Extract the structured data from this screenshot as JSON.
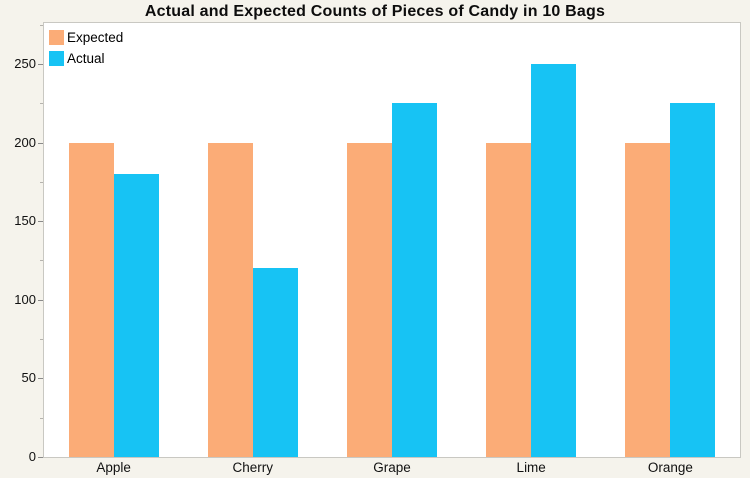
{
  "title": "Actual and Expected Counts of Pieces of Candy in 10 Bags",
  "chart_data": {
    "type": "bar",
    "title": "Actual and Expected Counts of Pieces of Candy in 10 Bags",
    "categories": [
      "Apple",
      "Cherry",
      "Grape",
      "Lime",
      "Orange"
    ],
    "series": [
      {
        "name": "Expected",
        "color": "#FBAC77",
        "values": [
          200,
          200,
          200,
          200,
          200
        ]
      },
      {
        "name": "Actual",
        "color": "#17C3F4",
        "values": [
          180,
          120,
          225,
          250,
          225
        ]
      }
    ],
    "xlabel": "",
    "ylabel": "",
    "ylim": [
      0,
      276
    ],
    "yticks_major": [
      0,
      50,
      100,
      150,
      200,
      250
    ],
    "yticks_minor": [
      25,
      75,
      125,
      175,
      225,
      275
    ],
    "grid": false,
    "legend_position": "top-left",
    "colors": {
      "background": "#F5F3EC",
      "plot_background": "#FFFFFF",
      "plot_border": "#C9C8C2",
      "major_tick": "#8a8a8a",
      "minor_tick": "#b5b3ae",
      "text": "#111111"
    }
  }
}
